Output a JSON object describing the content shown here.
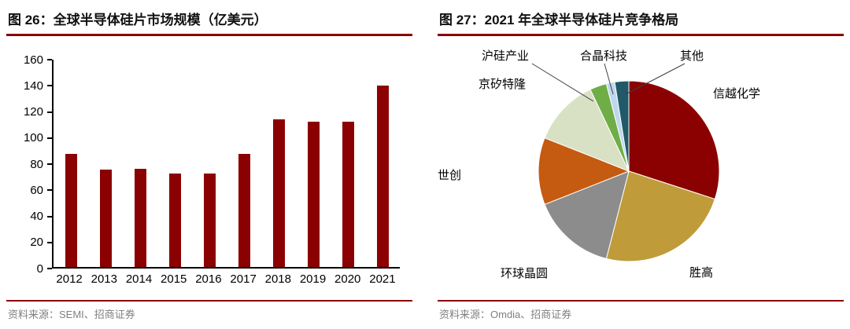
{
  "page": {
    "background": "#ffffff",
    "accent_color": "#8B0000",
    "text_color": "#000000",
    "source_text_color": "#808080"
  },
  "figure26": {
    "title": "图 26：全球半导体硅片市场规模（亿美元）",
    "source": "资料来源：SEMI、招商证券"
  },
  "figure27": {
    "title": "图 27：2021 年全球半导体硅片竞争格局",
    "source": "资料来源：Omdia、招商证券"
  },
  "chart_data": [
    {
      "type": "bar",
      "title": "全球半导体硅片市场规模（亿美元）",
      "categories": [
        "2012",
        "2013",
        "2014",
        "2015",
        "2016",
        "2017",
        "2018",
        "2019",
        "2020",
        "2021"
      ],
      "values": [
        87,
        75,
        76,
        72,
        72,
        87,
        114,
        112,
        112,
        140
      ],
      "xlabel": "",
      "ylabel": "",
      "ylim": [
        0,
        160
      ],
      "ytick_step": 20,
      "bar_color": "#8B0000",
      "grid": false,
      "legend": "none"
    },
    {
      "type": "pie",
      "title": "2021 年全球半导体硅片竞争格局",
      "labels": [
        "信越化学",
        "胜高",
        "环球晶圆",
        "世创",
        "京矽特隆",
        "沪硅产业",
        "合晶科技",
        "其他"
      ],
      "values": [
        30,
        24,
        15,
        12,
        12,
        3,
        1.5,
        2.5
      ],
      "colors": [
        "#8B0000",
        "#BF9B3A",
        "#8C8C8C",
        "#C55A11",
        "#D8E1C3",
        "#70AD47",
        "#BDD7EE",
        "#215968"
      ],
      "legend": "none",
      "label_position": "outside",
      "start_angle_deg": 0,
      "direction": "clockwise"
    }
  ]
}
